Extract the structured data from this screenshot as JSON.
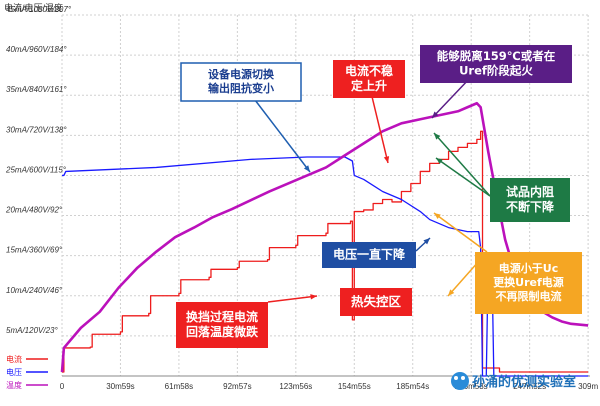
{
  "chart_data": {
    "type": "line",
    "title": "",
    "corner_label": "电流/电压/温度",
    "xlabel": "",
    "ylabel": "",
    "x_unit": "seconds",
    "xlim": [
      0,
      280
    ],
    "ylim_current_mA": [
      0,
      45
    ],
    "grid": true,
    "legend_position": "bottom-left",
    "y_ticks": [
      {
        "value": 5,
        "label": "5mA/120V/23°"
      },
      {
        "value": 10,
        "label": "10mA/240V/46°"
      },
      {
        "value": 15,
        "label": "15mA/360V/69°"
      },
      {
        "value": 20,
        "label": "20mA/480V/92°"
      },
      {
        "value": 25,
        "label": "25mA/600V/115°"
      },
      {
        "value": 30,
        "label": "30mA/720V/138°"
      },
      {
        "value": 35,
        "label": "35mA/840V/161°"
      },
      {
        "value": 40,
        "label": "40mA/960V/184°"
      },
      {
        "value": 45,
        "label": "45mA/1080V/207°"
      }
    ],
    "x_ticks": [
      {
        "value": 0,
        "label": "0"
      },
      {
        "value": 31,
        "label": "30m59s"
      },
      {
        "value": 62,
        "label": "61m58s"
      },
      {
        "value": 93,
        "label": "92m57s"
      },
      {
        "value": 124,
        "label": "123m56s"
      },
      {
        "value": 155,
        "label": "154m55s"
      },
      {
        "value": 186,
        "label": "185m54s"
      },
      {
        "value": 217,
        "label": "216m53s"
      },
      {
        "value": 248,
        "label": "247m52s"
      },
      {
        "value": 279,
        "label": "309m"
      }
    ],
    "series": [
      {
        "name": "电流",
        "color": "#ee1c1c",
        "kind": "steps",
        "points": [
          [
            0,
            0.5
          ],
          [
            1,
            3.5
          ],
          [
            15,
            3.6
          ],
          [
            16,
            5.2
          ],
          [
            31,
            5.5
          ],
          [
            32,
            7.5
          ],
          [
            46,
            7.8
          ],
          [
            47,
            10
          ],
          [
            62,
            10.3
          ],
          [
            63,
            12
          ],
          [
            78,
            12.3
          ],
          [
            79,
            13.3
          ],
          [
            93,
            13.5
          ],
          [
            94,
            14.3
          ],
          [
            109,
            14.5
          ],
          [
            110,
            16
          ],
          [
            124,
            16.3
          ],
          [
            125,
            17.5
          ],
          [
            140,
            17.8
          ],
          [
            141,
            19
          ],
          [
            153,
            19.3
          ],
          [
            154,
            7
          ],
          [
            155,
            20.5
          ],
          [
            160,
            20.7
          ],
          [
            165,
            21.5
          ],
          [
            170,
            22
          ],
          [
            175,
            21.7
          ],
          [
            180,
            23
          ],
          [
            185,
            24
          ],
          [
            190,
            25.5
          ],
          [
            195,
            26.5
          ],
          [
            200,
            27
          ],
          [
            205,
            28
          ],
          [
            210,
            28.5
          ],
          [
            215,
            29
          ],
          [
            220,
            29.5
          ],
          [
            222,
            30.5
          ],
          [
            223,
            1
          ],
          [
            224,
            1
          ],
          [
            232,
            0.5
          ],
          [
            279,
            0.5
          ]
        ]
      },
      {
        "name": "电压",
        "color": "#1a1aff",
        "kind": "line",
        "points": [
          [
            0,
            25
          ],
          [
            1,
            25
          ],
          [
            2,
            25.5
          ],
          [
            50,
            26
          ],
          [
            100,
            27
          ],
          [
            130,
            27.3
          ],
          [
            150,
            27.3
          ],
          [
            154,
            26.8
          ],
          [
            155,
            25
          ],
          [
            160,
            24.5
          ],
          [
            170,
            23
          ],
          [
            180,
            22
          ],
          [
            190,
            20.5
          ],
          [
            195,
            19.5
          ],
          [
            200,
            19
          ],
          [
            205,
            18.5
          ],
          [
            215,
            18
          ],
          [
            221,
            18
          ],
          [
            222,
            16
          ],
          [
            223,
            0
          ],
          [
            225,
            0
          ],
          [
            226,
            14
          ],
          [
            228,
            14
          ],
          [
            229,
            0
          ],
          [
            279,
            0
          ]
        ]
      },
      {
        "name": "温度",
        "color": "#bb11bb",
        "kind": "line",
        "points": [
          [
            0,
            0.5
          ],
          [
            1,
            3.5
          ],
          [
            10,
            6
          ],
          [
            20,
            8
          ],
          [
            30,
            11
          ],
          [
            40,
            13.5
          ],
          [
            50,
            15.5
          ],
          [
            60,
            17.3
          ],
          [
            70,
            18.5
          ],
          [
            80,
            19.8
          ],
          [
            90,
            20.8
          ],
          [
            100,
            21.9
          ],
          [
            110,
            23
          ],
          [
            120,
            24
          ],
          [
            130,
            25
          ],
          [
            140,
            26
          ],
          [
            150,
            27.5
          ],
          [
            160,
            29
          ],
          [
            170,
            30.5
          ],
          [
            180,
            31.5
          ],
          [
            190,
            32
          ],
          [
            200,
            32.5
          ],
          [
            210,
            33
          ],
          [
            215,
            33.5
          ],
          [
            220,
            34
          ],
          [
            222,
            33.5
          ],
          [
            226,
            28
          ],
          [
            230,
            23
          ],
          [
            235,
            17
          ],
          [
            240,
            13
          ],
          [
            245,
            10.5
          ],
          [
            250,
            9
          ],
          [
            255,
            8
          ],
          [
            260,
            7.3
          ],
          [
            265,
            6.8
          ],
          [
            270,
            6.5
          ],
          [
            279,
            6.3
          ]
        ]
      }
    ],
    "annotations": [
      {
        "id": "impedance",
        "lines": [
          "设备电源切换",
          "输出阻抗变小"
        ],
        "color": "#1a3d8f",
        "border": "#1f5fb0",
        "fill": "#ffffff"
      },
      {
        "id": "current-unstable",
        "lines": [
          "电流不稳",
          "定上升"
        ],
        "color": "#ffffff",
        "border": "#ffffff",
        "fill": "#ee2020"
      },
      {
        "id": "detach",
        "lines": [
          "能够脱离159℃或者在",
          "Uref阶段起火"
        ],
        "color": "#ffffff",
        "border": "#ffffff",
        "fill": "#5a1e86"
      },
      {
        "id": "resistance",
        "lines": [
          "试品内阻",
          "不断下降"
        ],
        "color": "#ffffff",
        "border": "#ffffff",
        "fill": "#1e7a45"
      },
      {
        "id": "voltage-drop",
        "lines": [
          "电压一直下降"
        ],
        "color": "#ffffff",
        "border": "#ffffff",
        "fill": "#1f4ea3"
      },
      {
        "id": "uc",
        "lines": [
          "电源小于Uc",
          "更换Uref电源",
          "不再限制电流"
        ],
        "color": "#ffffff",
        "border": "#ffffff",
        "fill": "#f5a623"
      },
      {
        "id": "range-switch",
        "lines": [
          "换挡过程电流",
          "回落温度微跌"
        ],
        "color": "#ffffff",
        "border": "#ffffff",
        "fill": "#ee2020"
      },
      {
        "id": "thermal-runaway",
        "lines": [
          "热失控区"
        ],
        "color": "#ffffff",
        "border": "#ffffff",
        "fill": "#ee2020"
      }
    ],
    "watermark": "孙涌的优测实验室"
  }
}
